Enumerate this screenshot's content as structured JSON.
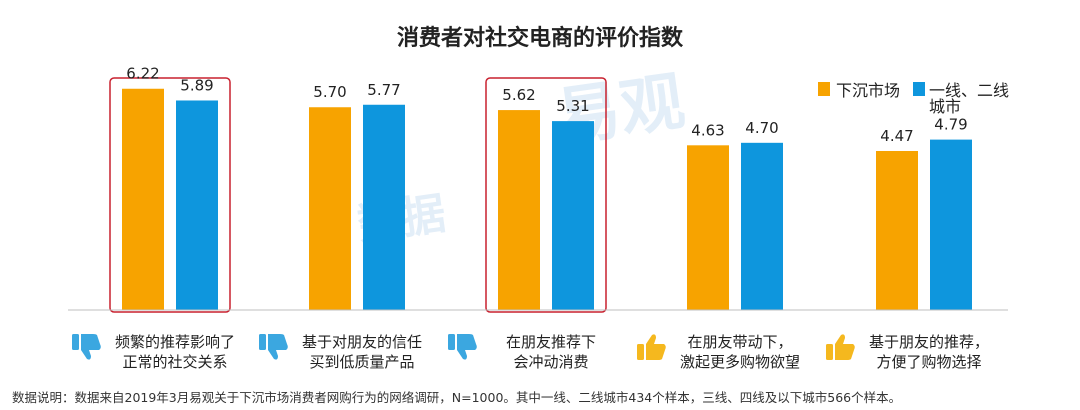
{
  "chart_data": {
    "type": "bar",
    "title": "消费者对社交电商的评价指数",
    "categories": [
      [
        "频繁的推荐影响了",
        "正常的社交关系"
      ],
      [
        "基于对朋友的信任",
        "买到低质量产品"
      ],
      [
        "在朋友推荐下",
        "会冲动消费"
      ],
      [
        "在朋友带动下，",
        "激起更多购物欲望"
      ],
      [
        "基于朋友的推荐，",
        "方便了购物选择"
      ]
    ],
    "category_sentiment": [
      "negative",
      "negative",
      "negative",
      "positive",
      "positive"
    ],
    "series": [
      {
        "name": "下沉市场",
        "values": [
          6.22,
          5.7,
          5.62,
          4.63,
          4.47
        ],
        "color": "#F7A300"
      },
      {
        "name": "一线、二线城市",
        "values": [
          5.89,
          5.77,
          5.31,
          4.7,
          4.79
        ],
        "color": "#0E96DD"
      }
    ],
    "value_labels": [
      [
        "6.22",
        "5.89"
      ],
      [
        "5.70",
        "5.77"
      ],
      [
        "5.62",
        "5.31"
      ],
      [
        "4.63",
        "4.70"
      ],
      [
        "4.47",
        "4.79"
      ]
    ],
    "highlighted_categories": [
      0,
      2
    ],
    "highlight_color": "#C8202F",
    "ylim": [
      0,
      7
    ],
    "legend_position": "top-right",
    "grid": false
  },
  "icons": {
    "negative": "thumbs-down-icon",
    "positive": "thumbs-up-icon",
    "negative_color": "#3BA7E0",
    "positive_color": "#F5B81E"
  },
  "watermark": {
    "text": "易观",
    "text2": "数据"
  },
  "footnote": "数据说明：数据来自2019年3月易观关于下沉市场消费者网购行为的网络调研，N=1000。其中一线、二线城市434个样本，三线、四线及以下城市566个样本。"
}
